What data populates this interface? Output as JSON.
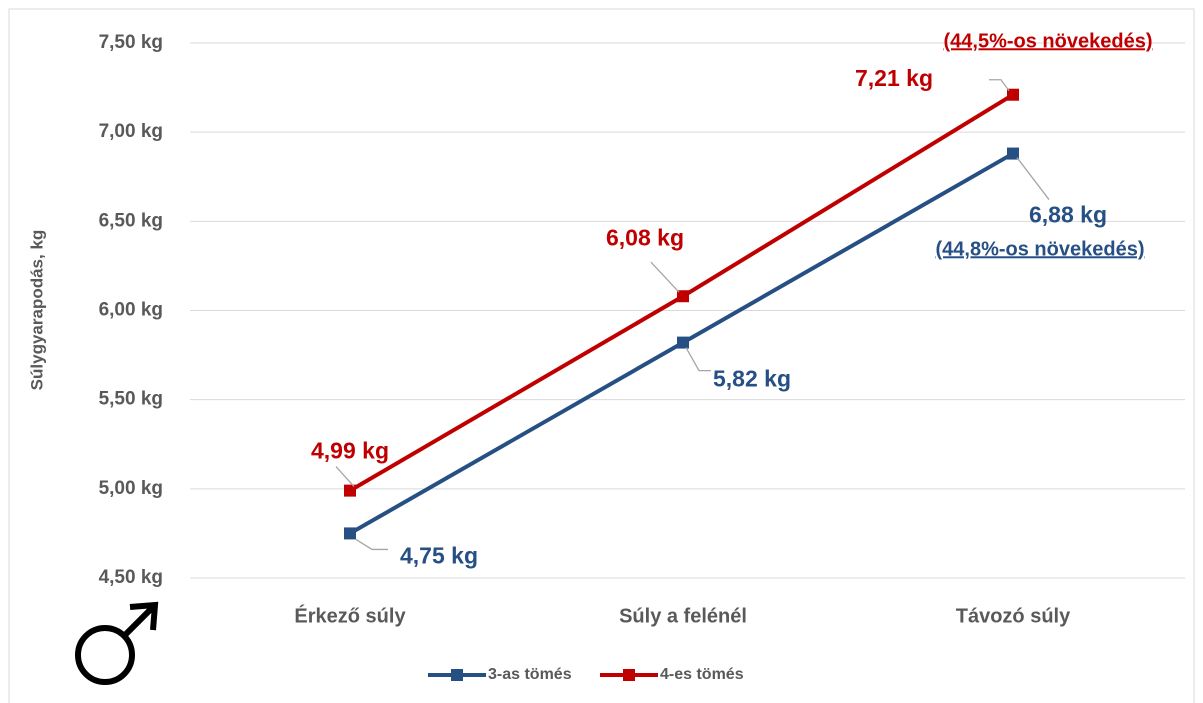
{
  "chart_data": {
    "type": "line",
    "ylabel": "Súlygyarapodás, kg",
    "categories": [
      "Érkező súly",
      "Súly a felénél",
      "Távozó súly"
    ],
    "series": [
      {
        "name": "3-as tömés",
        "color": "#264f84",
        "values": [
          4.75,
          5.82,
          6.88
        ],
        "value_labels": [
          "4,75 kg",
          "5,82 kg",
          "6,88 kg"
        ]
      },
      {
        "name": "4-es tömés",
        "color": "#c00000",
        "values": [
          4.99,
          6.08,
          7.21
        ],
        "value_labels": [
          "4,99 kg",
          "6,08 kg",
          "7,21 kg"
        ]
      }
    ],
    "annotations": [
      "(44,5%-os növekedés)",
      "(44,8%-os növekedés)"
    ],
    "ylim": [
      4.5,
      7.5
    ],
    "yticks": [
      {
        "value": 4.5,
        "label": "4,50 kg"
      },
      {
        "value": 5,
        "label": "5,00 kg"
      },
      {
        "value": 5.5,
        "label": "5,50 kg"
      },
      {
        "value": 6,
        "label": "6,00 kg"
      },
      {
        "value": 6.5,
        "label": "6,50 kg"
      },
      {
        "value": 7,
        "label": "7,00 kg"
      },
      {
        "value": 7.5,
        "label": "7,50 kg"
      }
    ],
    "grid": true
  }
}
